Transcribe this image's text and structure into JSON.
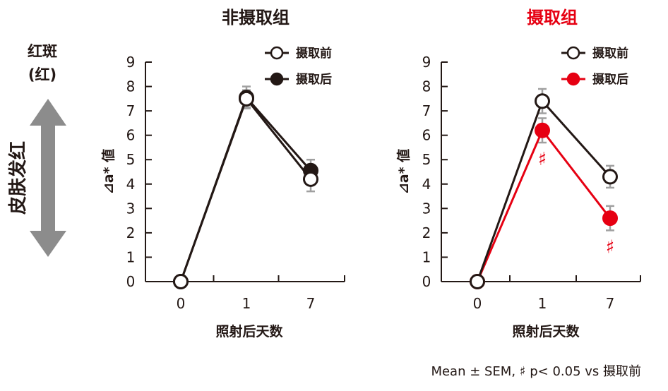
{
  "side_label": {
    "line1": "红斑",
    "line2": "(红)",
    "vertical": "皮肤发红",
    "arrow_color": "#8c8c8c"
  },
  "footnote": "Mean ± SEM, ♯ p< 0.05 vs 摄取前",
  "colors": {
    "dark": "#231815",
    "red": "#e60012",
    "error": "#a0a0a0"
  },
  "chart_data": [
    {
      "type": "line",
      "title": "非摄取组",
      "title_color": "#231815",
      "xlabel": "照射后天数",
      "ylabel": "⊿a* 値",
      "x": [
        "0",
        "1",
        "7"
      ],
      "ylim": [
        0,
        9
      ],
      "yticks": [
        "0",
        "1",
        "2",
        "3",
        "4",
        "5",
        "6",
        "7",
        "8",
        "9"
      ],
      "legend_position": "top-right",
      "series": [
        {
          "name": "摄取前",
          "values": [
            0,
            7.5,
            4.2
          ],
          "sem": [
            0,
            0.35,
            0.5
          ],
          "marker": "open",
          "color": "#231815",
          "sig": []
        },
        {
          "name": "摄取后",
          "values": [
            0,
            7.55,
            4.55
          ],
          "sem": [
            0,
            0.45,
            0.45
          ],
          "marker": "filled",
          "color": "#231815",
          "sig": []
        }
      ]
    },
    {
      "type": "line",
      "title": "摄取组",
      "title_color": "#e60012",
      "xlabel": "照射后天数",
      "ylabel": "⊿a* 値",
      "x": [
        "0",
        "1",
        "7"
      ],
      "ylim": [
        0,
        9
      ],
      "yticks": [
        "0",
        "1",
        "2",
        "3",
        "4",
        "5",
        "6",
        "7",
        "8",
        "9"
      ],
      "legend_position": "top-right",
      "series": [
        {
          "name": "摄取前",
          "values": [
            0,
            7.4,
            4.3
          ],
          "sem": [
            0,
            0.5,
            0.45
          ],
          "marker": "open",
          "color": "#231815",
          "sig": []
        },
        {
          "name": "摄取后",
          "values": [
            0,
            6.2,
            2.6
          ],
          "sem": [
            0,
            0.5,
            0.5
          ],
          "marker": "filled",
          "color": "#e60012",
          "sig": [
            "",
            "♯",
            "♯"
          ]
        }
      ]
    }
  ]
}
